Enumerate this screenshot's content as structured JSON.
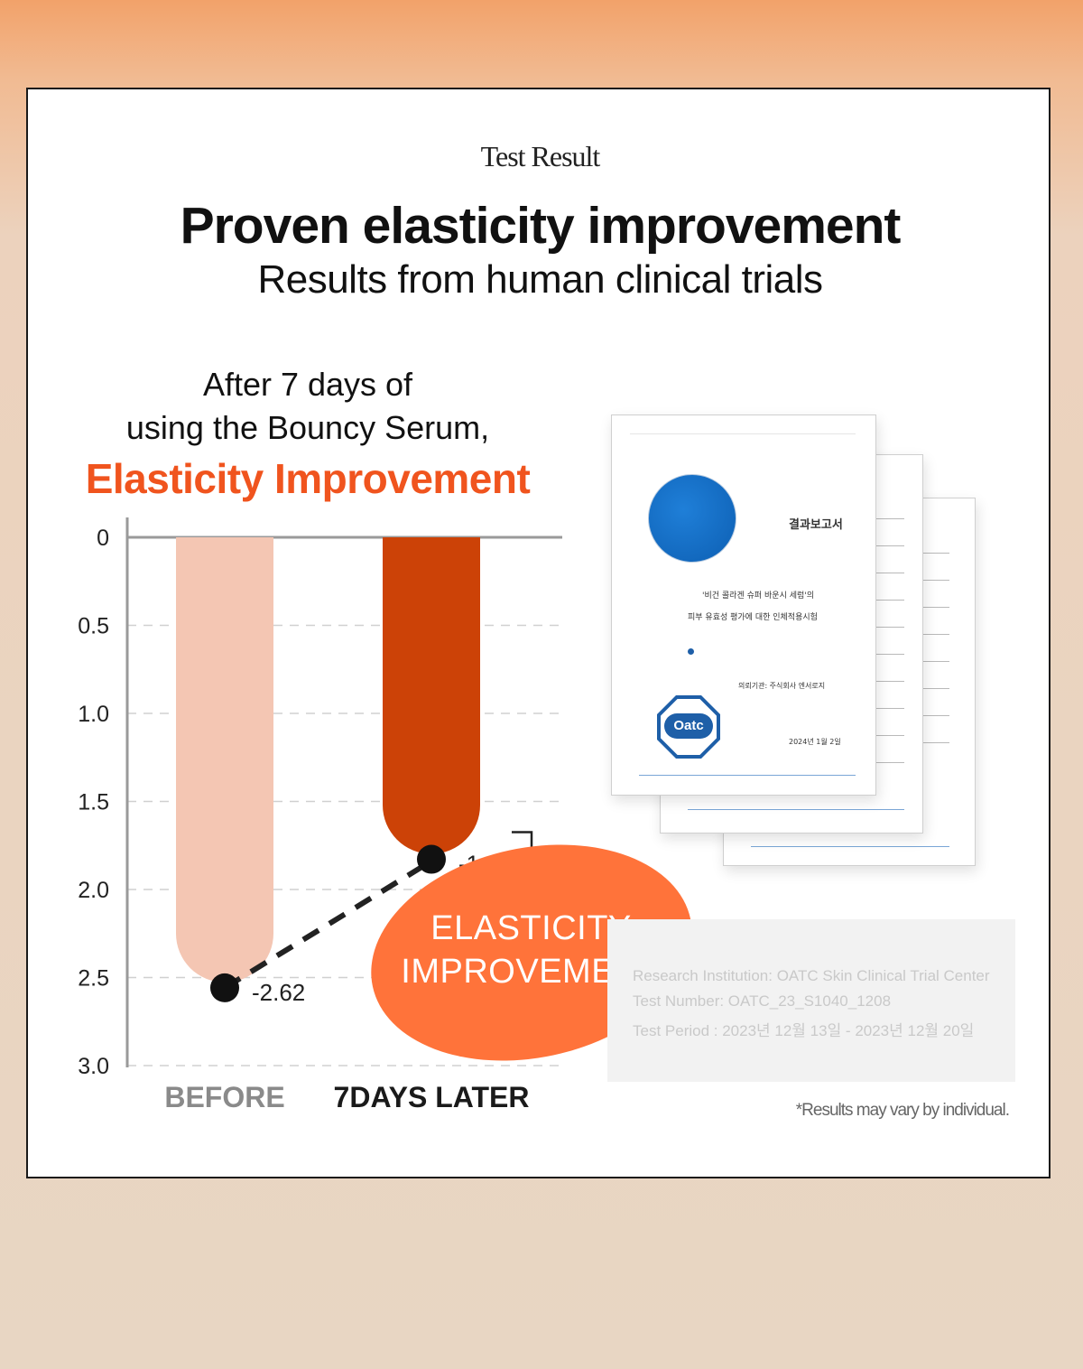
{
  "header": {
    "eyebrow": "Test Result",
    "title": "Proven elasticity improvement",
    "subtitle": "Results from human clinical trials"
  },
  "lead": {
    "line1": "After 7 days of",
    "line2": "using the Bouncy Serum,",
    "highlight": "Elasticity Improvement"
  },
  "colors": {
    "accent": "#f0541e",
    "before_bar": "#f4c6b3",
    "after_bar": "#cc4207",
    "bubble": "#ff733a"
  },
  "chart_data": {
    "type": "bar",
    "title": "",
    "categories": [
      "BEFORE",
      "7DAYS LATER"
    ],
    "values": [
      -2.62,
      -1.89
    ],
    "value_labels": [
      "-2.62",
      "-1.89"
    ],
    "y_ticks": [
      "0",
      "0.5",
      "1.0",
      "1.5",
      "2.0",
      "2.5",
      "3.0"
    ],
    "ylim": [
      0,
      3.0
    ],
    "y_inverted": true,
    "grid": true,
    "annotation": "ELASTICITY IMPROVEMENT",
    "annotation_lines": [
      "ELASTICITY",
      "IMPROVEMENT"
    ]
  },
  "document": {
    "report_title": "결과보고서",
    "report_line1": "'비건 콜라겐 슈퍼 바운시 세럼'의",
    "report_line2": "피부 유효성 평가에 대한 인체적용시험",
    "client": "의뢰기관: 주식회사 엔서로지",
    "date": "2024년 1월 2일",
    "seal_text": "Oatc"
  },
  "info": {
    "line1": "Research Institution: OATC Skin Clinical Trial Center",
    "line2": "Test Number: OATC_23_S1040_1208",
    "line3": "Test Period : 2023년 12월 13일 - 2023년 12월 20일"
  },
  "disclaimer": "*Results may vary by individual."
}
